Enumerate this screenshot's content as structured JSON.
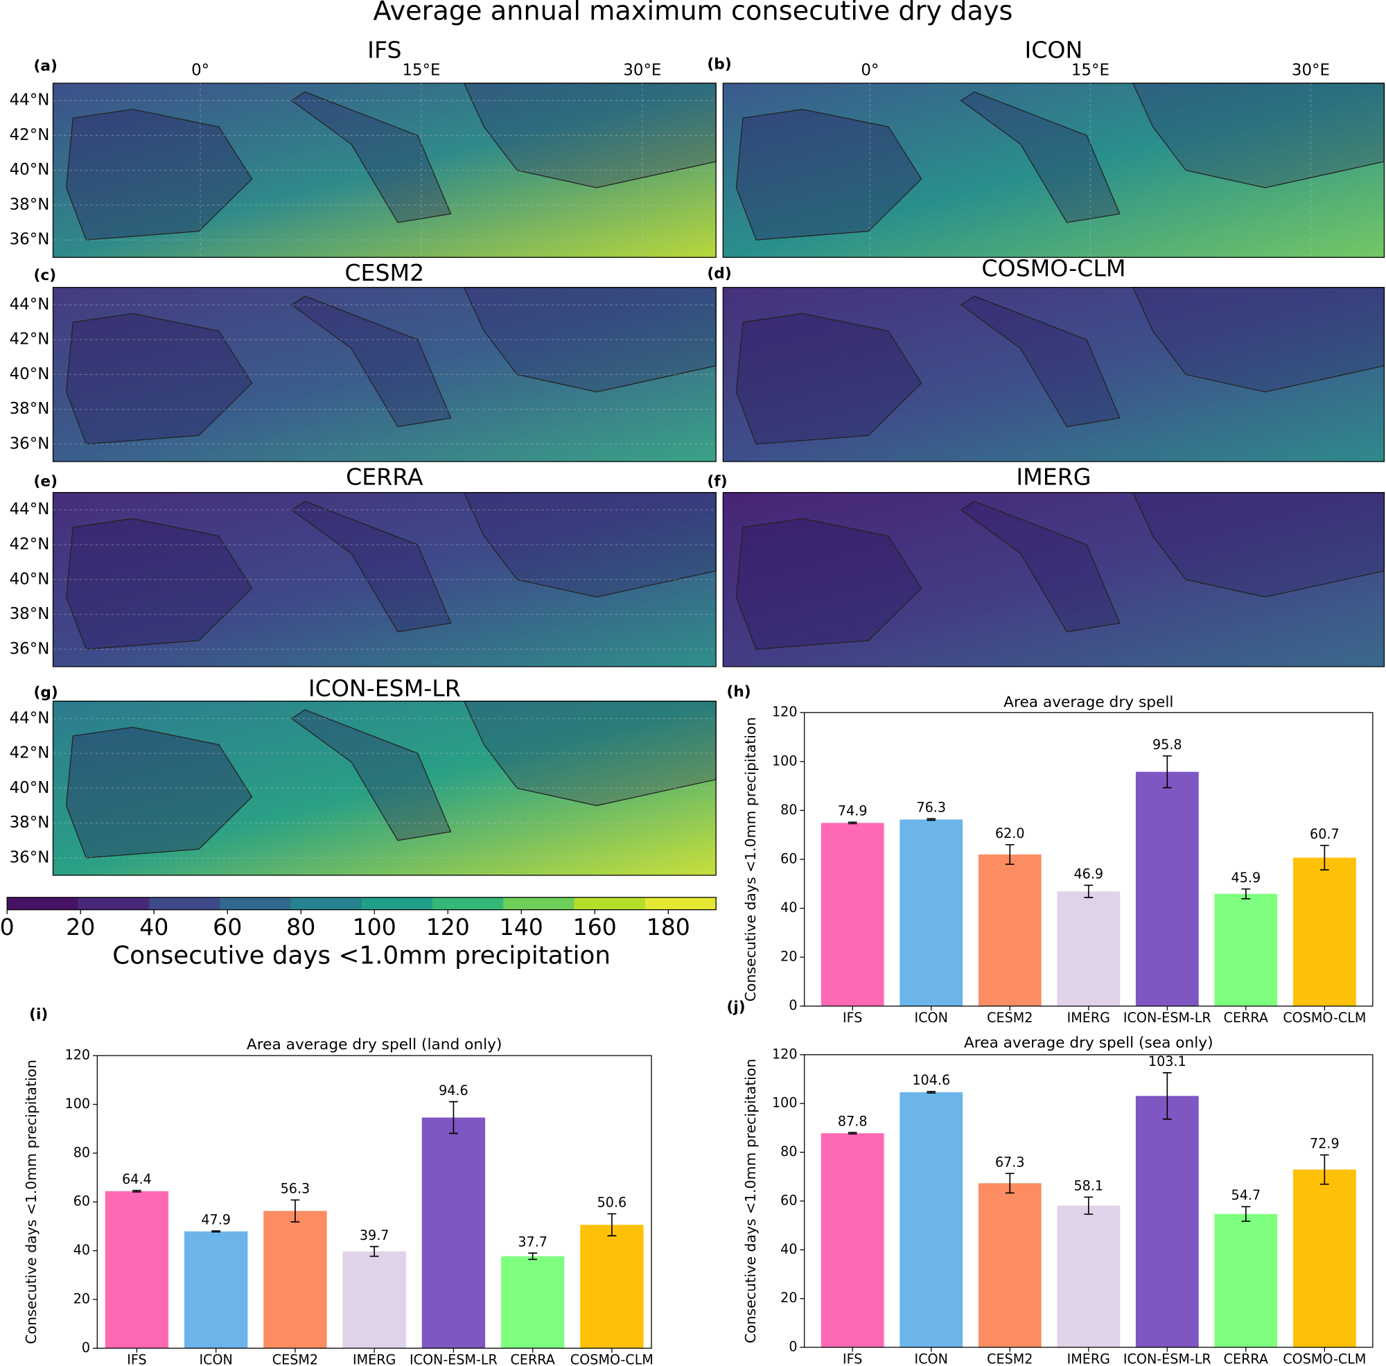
{
  "title": "Average annual maximum consecutive dry days",
  "chart_data": [
    {
      "type": "map",
      "panel": "(a)",
      "title": "IFS",
      "xlim": [
        -10,
        35
      ],
      "ylim": [
        35,
        45
      ],
      "xticks": [
        {
          "value": 0,
          "label": "0°"
        },
        {
          "value": 15,
          "label": "15°E"
        },
        {
          "value": 30,
          "label": "30°E"
        }
      ],
      "yticks": [
        {
          "value": 36,
          "label": "36°N"
        },
        {
          "value": 38,
          "label": "38°N"
        },
        {
          "value": 40,
          "label": "40°N"
        },
        {
          "value": 42,
          "label": "42°N"
        },
        {
          "value": 44,
          "label": "44°N"
        }
      ]
    },
    {
      "type": "map",
      "panel": "(b)",
      "title": "ICON",
      "xlim": [
        -10,
        35
      ],
      "xticks": [
        {
          "value": 0,
          "label": "0°"
        },
        {
          "value": 15,
          "label": "15°E"
        },
        {
          "value": 30,
          "label": "30°E"
        }
      ]
    },
    {
      "type": "map",
      "panel": "(c)",
      "title": "CESM2",
      "ylim": [
        35,
        45
      ],
      "yticks": [
        {
          "value": 36,
          "label": "36°N"
        },
        {
          "value": 38,
          "label": "38°N"
        },
        {
          "value": 40,
          "label": "40°N"
        },
        {
          "value": 42,
          "label": "42°N"
        },
        {
          "value": 44,
          "label": "44°N"
        }
      ]
    },
    {
      "type": "map",
      "panel": "(d)",
      "title": "COSMO-CLM"
    },
    {
      "type": "map",
      "panel": "(e)",
      "title": "CERRA",
      "ylim": [
        35,
        45
      ],
      "yticks": [
        {
          "value": 36,
          "label": "36°N"
        },
        {
          "value": 38,
          "label": "38°N"
        },
        {
          "value": 40,
          "label": "40°N"
        },
        {
          "value": 42,
          "label": "42°N"
        },
        {
          "value": 44,
          "label": "44°N"
        }
      ]
    },
    {
      "type": "map",
      "panel": "(f)",
      "title": "IMERG"
    },
    {
      "type": "map",
      "panel": "(g)",
      "title": "ICON-ESM-LR",
      "ylim": [
        35,
        45
      ],
      "yticks": [
        {
          "value": 36,
          "label": "36°N"
        },
        {
          "value": 38,
          "label": "38°N"
        },
        {
          "value": 40,
          "label": "40°N"
        },
        {
          "value": 42,
          "label": "42°N"
        },
        {
          "value": 44,
          "label": "44°N"
        }
      ]
    },
    {
      "type": "colorbar",
      "label": "Consecutive days <1.0mm precipitation",
      "xlim": [
        0,
        193
      ],
      "xticks": [
        0,
        20,
        40,
        60,
        80,
        100,
        120,
        140,
        160,
        180
      ],
      "colors": [
        "#471365",
        "#482878",
        "#3e4989",
        "#31688e",
        "#26828e",
        "#1f9e89",
        "#35b779",
        "#6ece58",
        "#b5de2b",
        "#e4e833"
      ]
    },
    {
      "type": "bar",
      "panel": "(h)",
      "title": "Area average dry spell",
      "ylabel": "Consecutive days <1.0mm precipitation",
      "categories": [
        "IFS",
        "ICON",
        "CESM2",
        "IMERG",
        "ICON-ESM-LR",
        "CERRA",
        "COSMO-CLM"
      ],
      "values": [
        74.9,
        76.3,
        62.0,
        46.9,
        95.8,
        45.9,
        60.7
      ],
      "value_labels": [
        "74.9",
        "76.3",
        "62.0",
        "46.9",
        "95.8",
        "45.9",
        "60.7"
      ],
      "errors": [
        0.3,
        0.3,
        4,
        2.5,
        6.5,
        2,
        5
      ],
      "colors": [
        "#ff69b4",
        "#6bb5ea",
        "#fc8d62",
        "#e0d2e8",
        "#7e57c2",
        "#7fff7f",
        "#ffc107"
      ],
      "ylim": [
        0,
        120
      ],
      "yticks": [
        0,
        20,
        40,
        60,
        80,
        100,
        120
      ]
    },
    {
      "type": "bar",
      "panel": "(i)",
      "title": "Area average dry spell (land only)",
      "ylabel": "Consecutive days <1.0mm precipitation",
      "categories": [
        "IFS",
        "ICON",
        "CESM2",
        "IMERG",
        "ICON-ESM-LR",
        "CERRA",
        "COSMO-CLM"
      ],
      "values": [
        64.4,
        47.9,
        56.3,
        39.7,
        94.6,
        37.7,
        50.6
      ],
      "value_labels": [
        "64.4",
        "47.9",
        "56.3",
        "39.7",
        "94.6",
        "37.7",
        "50.6"
      ],
      "errors": [
        0.3,
        0.2,
        4.5,
        2,
        6.5,
        1.3,
        4.5
      ],
      "colors": [
        "#ff69b4",
        "#6bb5ea",
        "#fc8d62",
        "#e0d2e8",
        "#7e57c2",
        "#7fff7f",
        "#ffc107"
      ],
      "ylim": [
        0,
        120
      ],
      "yticks": [
        0,
        20,
        40,
        60,
        80,
        100,
        120
      ]
    },
    {
      "type": "bar",
      "panel": "(j)",
      "title": "Area average dry spell (sea only)",
      "ylabel": "Consecutive days <1.0mm precipitation",
      "categories": [
        "IFS",
        "ICON",
        "CESM2",
        "IMERG",
        "ICON-ESM-LR",
        "CERRA",
        "COSMO-CLM"
      ],
      "values": [
        87.8,
        104.6,
        67.3,
        58.1,
        103.1,
        54.7,
        72.9
      ],
      "value_labels": [
        "87.8",
        "104.6",
        "67.3",
        "58.1",
        "103.1",
        "54.7",
        "72.9"
      ],
      "errors": [
        0.3,
        0.3,
        4,
        3.5,
        9.5,
        3,
        6
      ],
      "colors": [
        "#ff69b4",
        "#6bb5ea",
        "#fc8d62",
        "#e0d2e8",
        "#7e57c2",
        "#7fff7f",
        "#ffc107"
      ],
      "ylim": [
        0,
        120
      ],
      "yticks": [
        0,
        20,
        40,
        60,
        80,
        100,
        120
      ]
    }
  ]
}
